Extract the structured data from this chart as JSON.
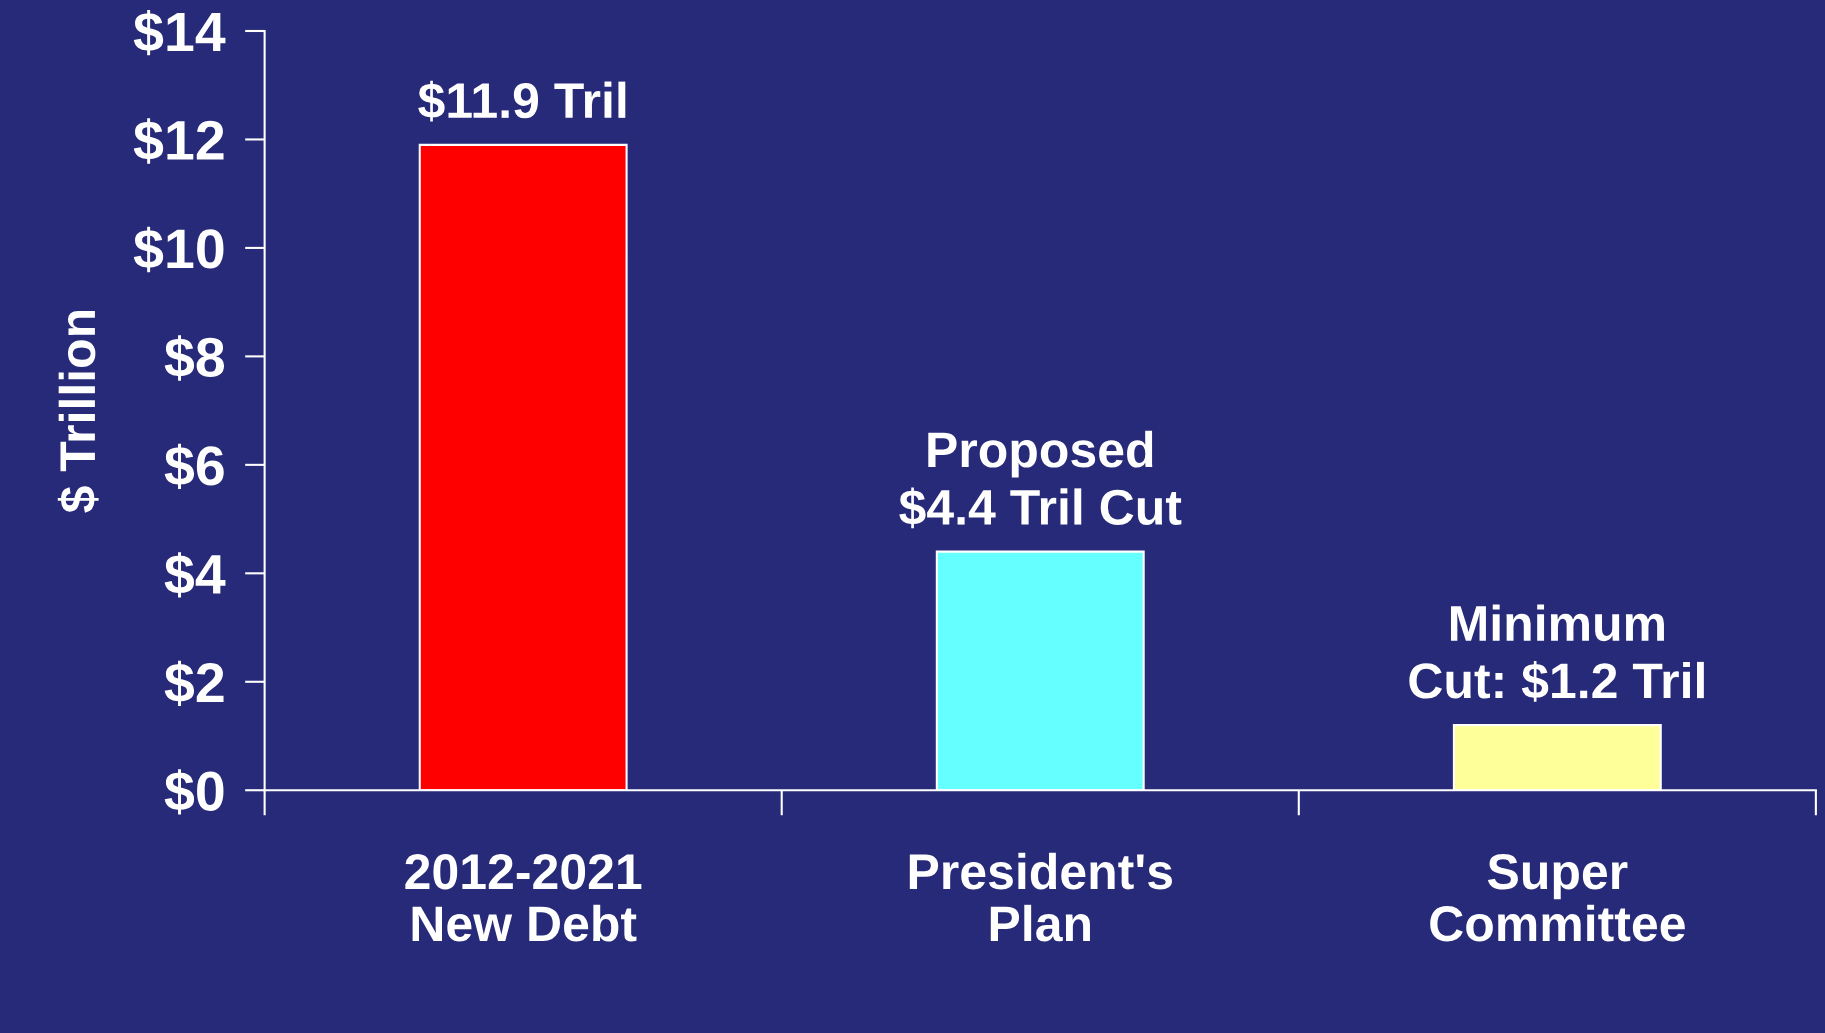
{
  "chart_data": {
    "type": "bar",
    "ylabel": "$ Trillion",
    "categories": [
      "2012-2021\nNew Debt",
      "President's\nPlan",
      "Super\nCommittee"
    ],
    "values": [
      11.9,
      4.4,
      1.2
    ],
    "colors": [
      "#ff0000",
      "#66ffff",
      "#ffff99"
    ],
    "value_labels": [
      "$11.9 Tril",
      "Proposed\n$4.4 Tril Cut",
      "Minimum\nCut: $1.2 Tril"
    ],
    "ylim": [
      0,
      14
    ],
    "yticks": [
      {
        "value": 0,
        "label": "$0"
      },
      {
        "value": 2,
        "label": "$2"
      },
      {
        "value": 4,
        "label": "$4"
      },
      {
        "value": 6,
        "label": "$6"
      },
      {
        "value": 8,
        "label": "$8"
      },
      {
        "value": 10,
        "label": "$10"
      },
      {
        "value": 12,
        "label": "$12"
      },
      {
        "value": 14,
        "label": "$14"
      }
    ],
    "grid": false,
    "legend": false
  }
}
